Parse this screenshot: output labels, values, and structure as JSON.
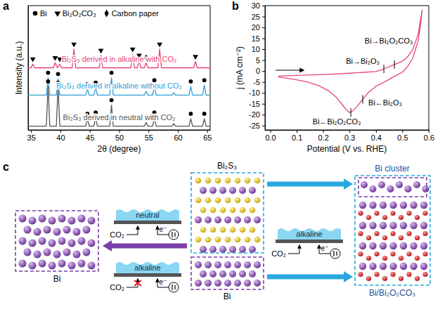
{
  "chart_data": [
    {
      "type": "line",
      "title": "a",
      "x_label": "2θ (degree)",
      "y_label": "Intensity (a.u.)",
      "xlim": [
        34.5,
        65.5
      ],
      "xticks": [
        35,
        40,
        45,
        50,
        55,
        60,
        65
      ],
      "ylim": [
        0,
        100
      ],
      "yticks": [],
      "tick_labels": "x",
      "grid": false,
      "legend": "upper left",
      "series": [
        {
          "name": "Bi₂S₃ derived in alkaline with CO₂",
          "color": "#e8417a",
          "x": [
            34.5,
            35.0,
            35.3,
            35.6,
            38.8,
            39.1,
            39.5,
            39.9,
            40.2,
            42.0,
            42.3,
            42.6,
            46.6,
            46.9,
            47.2,
            52.0,
            52.3,
            52.6,
            53.1,
            53.4,
            53.7,
            54.3,
            54.6,
            54.9,
            56.6,
            56.9,
            57.2,
            62.7,
            63.0,
            63.3,
            65.5
          ],
          "values": [
            50,
            50,
            53,
            50,
            50,
            54,
            50,
            53,
            50,
            50,
            65,
            50,
            50,
            60,
            50,
            50,
            61,
            50,
            50,
            56,
            50,
            50,
            54,
            50,
            50,
            65,
            50,
            50,
            55,
            50,
            50
          ]
        },
        {
          "name": "Bi₂S₃ derived in alkaline without CO₂",
          "color": "#2f9fd8",
          "x": [
            34.5,
            37.6,
            37.9,
            38.2,
            39.3,
            39.6,
            39.9,
            44.3,
            44.6,
            44.9,
            45.7,
            46.0,
            46.3,
            48.4,
            48.7,
            49.0,
            54.3,
            54.6,
            54.9,
            55.7,
            56.0,
            56.3,
            59.0,
            59.3,
            59.6,
            61.9,
            62.2,
            62.5,
            64.2,
            64.5,
            64.8,
            65.5
          ],
          "values": [
            28,
            28,
            42,
            28,
            28,
            41,
            28,
            28,
            33,
            28,
            28,
            34,
            28,
            28,
            42,
            28,
            28,
            31,
            28,
            28,
            36,
            28,
            28,
            30,
            28,
            28,
            35,
            28,
            28,
            36,
            28,
            28
          ]
        },
        {
          "name": "Bi₂S₃ derived in neutral with CO₂",
          "color": "#555555",
          "x": [
            34.5,
            37.6,
            37.9,
            38.2,
            39.3,
            39.6,
            39.9,
            44.3,
            44.6,
            44.9,
            45.7,
            46.0,
            46.3,
            48.4,
            48.7,
            49.0,
            54.3,
            54.6,
            54.9,
            55.7,
            56.0,
            56.3,
            59.0,
            59.3,
            59.6,
            61.9,
            62.2,
            62.5,
            64.2,
            64.5,
            64.8,
            65.5
          ],
          "values": [
            3,
            3,
            35,
            3,
            3,
            34,
            3,
            3,
            9,
            3,
            3,
            10,
            3,
            3,
            20,
            3,
            3,
            6,
            3,
            3,
            10,
            3,
            3,
            5,
            3,
            3,
            9,
            3,
            3,
            9,
            3,
            3
          ]
        }
      ],
      "phases": [
        {
          "name": "Bi",
          "marker": "circle",
          "x": [
            37.9,
            39.6,
            44.6,
            46.0,
            48.7,
            56.0,
            62.2,
            64.5,
            37.9,
            39.6,
            44.6,
            46.0,
            48.7,
            56.0,
            59.3,
            62.2,
            64.5
          ],
          "y": [
            46,
            45,
            37,
            38,
            46,
            40,
            39,
            40,
            39,
            38,
            13,
            14,
            24,
            14,
            9,
            13,
            13
          ]
        },
        {
          "name": "Bi₂O₂CO₃",
          "marker": "triangle-down",
          "x": [
            35.3,
            39.1,
            39.9,
            42.3,
            46.9,
            52.3,
            53.4,
            56.9,
            63.0
          ],
          "y": [
            57,
            58,
            57,
            69,
            64,
            65,
            60,
            69,
            59
          ]
        },
        {
          "name": "Carbon paper",
          "marker": "diamond",
          "x": [
            54.6,
            54.6,
            54.6
          ],
          "y": [
            58,
            35,
            10
          ]
        }
      ]
    },
    {
      "type": "line",
      "title": "b",
      "x_label": "Potential (V vs. RHE)",
      "y_label": "j (mA cm⁻²)",
      "xlim": [
        -0.02,
        0.6
      ],
      "xticks": [
        {
          "value": 0,
          "label": "0.0"
        },
        0.1,
        0.2,
        0.3,
        0.4,
        0.5,
        0.6
      ],
      "ylim": [
        -27,
        30
      ],
      "yticks": [
        -25,
        -20,
        -15,
        -10,
        -5,
        0,
        5,
        10,
        15,
        20,
        25,
        30
      ],
      "grid": false,
      "series": [
        {
          "color": "#e6457f",
          "x": [
            0.03,
            0.1,
            0.2,
            0.3,
            0.35,
            0.4,
            0.42,
            0.44,
            0.46,
            0.48,
            0.5,
            0.52,
            0.54,
            0.56,
            0.575,
            0.57,
            0.56,
            0.54,
            0.52,
            0.5,
            0.47,
            0.44,
            0.4,
            0.37,
            0.35,
            0.33,
            0.31,
            0.3,
            0.29,
            0.27,
            0.25,
            0.22,
            0.18,
            0.14,
            0.1,
            0.06,
            0.03
          ],
          "values": [
            -2.3,
            -2.0,
            -1.6,
            -1.0,
            -0.6,
            -0.2,
            0.5,
            1.5,
            2.5,
            3.5,
            4.5,
            6.5,
            10,
            17,
            28,
            22,
            14,
            6,
            2,
            -0.5,
            -2.5,
            -4.5,
            -7,
            -10,
            -13,
            -16,
            -18.5,
            -19,
            -18,
            -15,
            -12,
            -9,
            -6.5,
            -5,
            -4,
            -3.2,
            -2.7
          ]
        }
      ],
      "annotations": [
        {
          "text": "Bi→Bi₂O₃",
          "x": 0.43,
          "y": 1.0
        },
        {
          "text": "Bi→Bi₂O₂CO₃",
          "x": 0.47,
          "y": 3.0
        },
        {
          "text": "Bi←Bi₂O₂CO₃",
          "x": 0.305,
          "y": -19
        },
        {
          "text": "Bi←Bi₂O₃",
          "x": 0.35,
          "y": -13
        }
      ]
    }
  ],
  "diagram": {
    "title": "c",
    "structures": [
      {
        "label": "Bi₂S₃"
      },
      {
        "label": "Bi"
      },
      {
        "label": "Bi"
      },
      {
        "label": "Bi cluster"
      },
      {
        "label": "Bi/Bi₂O₂CO₃"
      }
    ],
    "cells": [
      {
        "electrolyte": "neutral",
        "gas": "CO₂",
        "electron": "e⁻",
        "blocked": false
      },
      {
        "electrolyte": "alkaline",
        "gas": "CO₂",
        "electron": "e⁻",
        "blocked": true
      },
      {
        "electrolyte": "alkaline",
        "gas": "CO₂",
        "electron": "e⁻",
        "blocked": false
      }
    ]
  }
}
